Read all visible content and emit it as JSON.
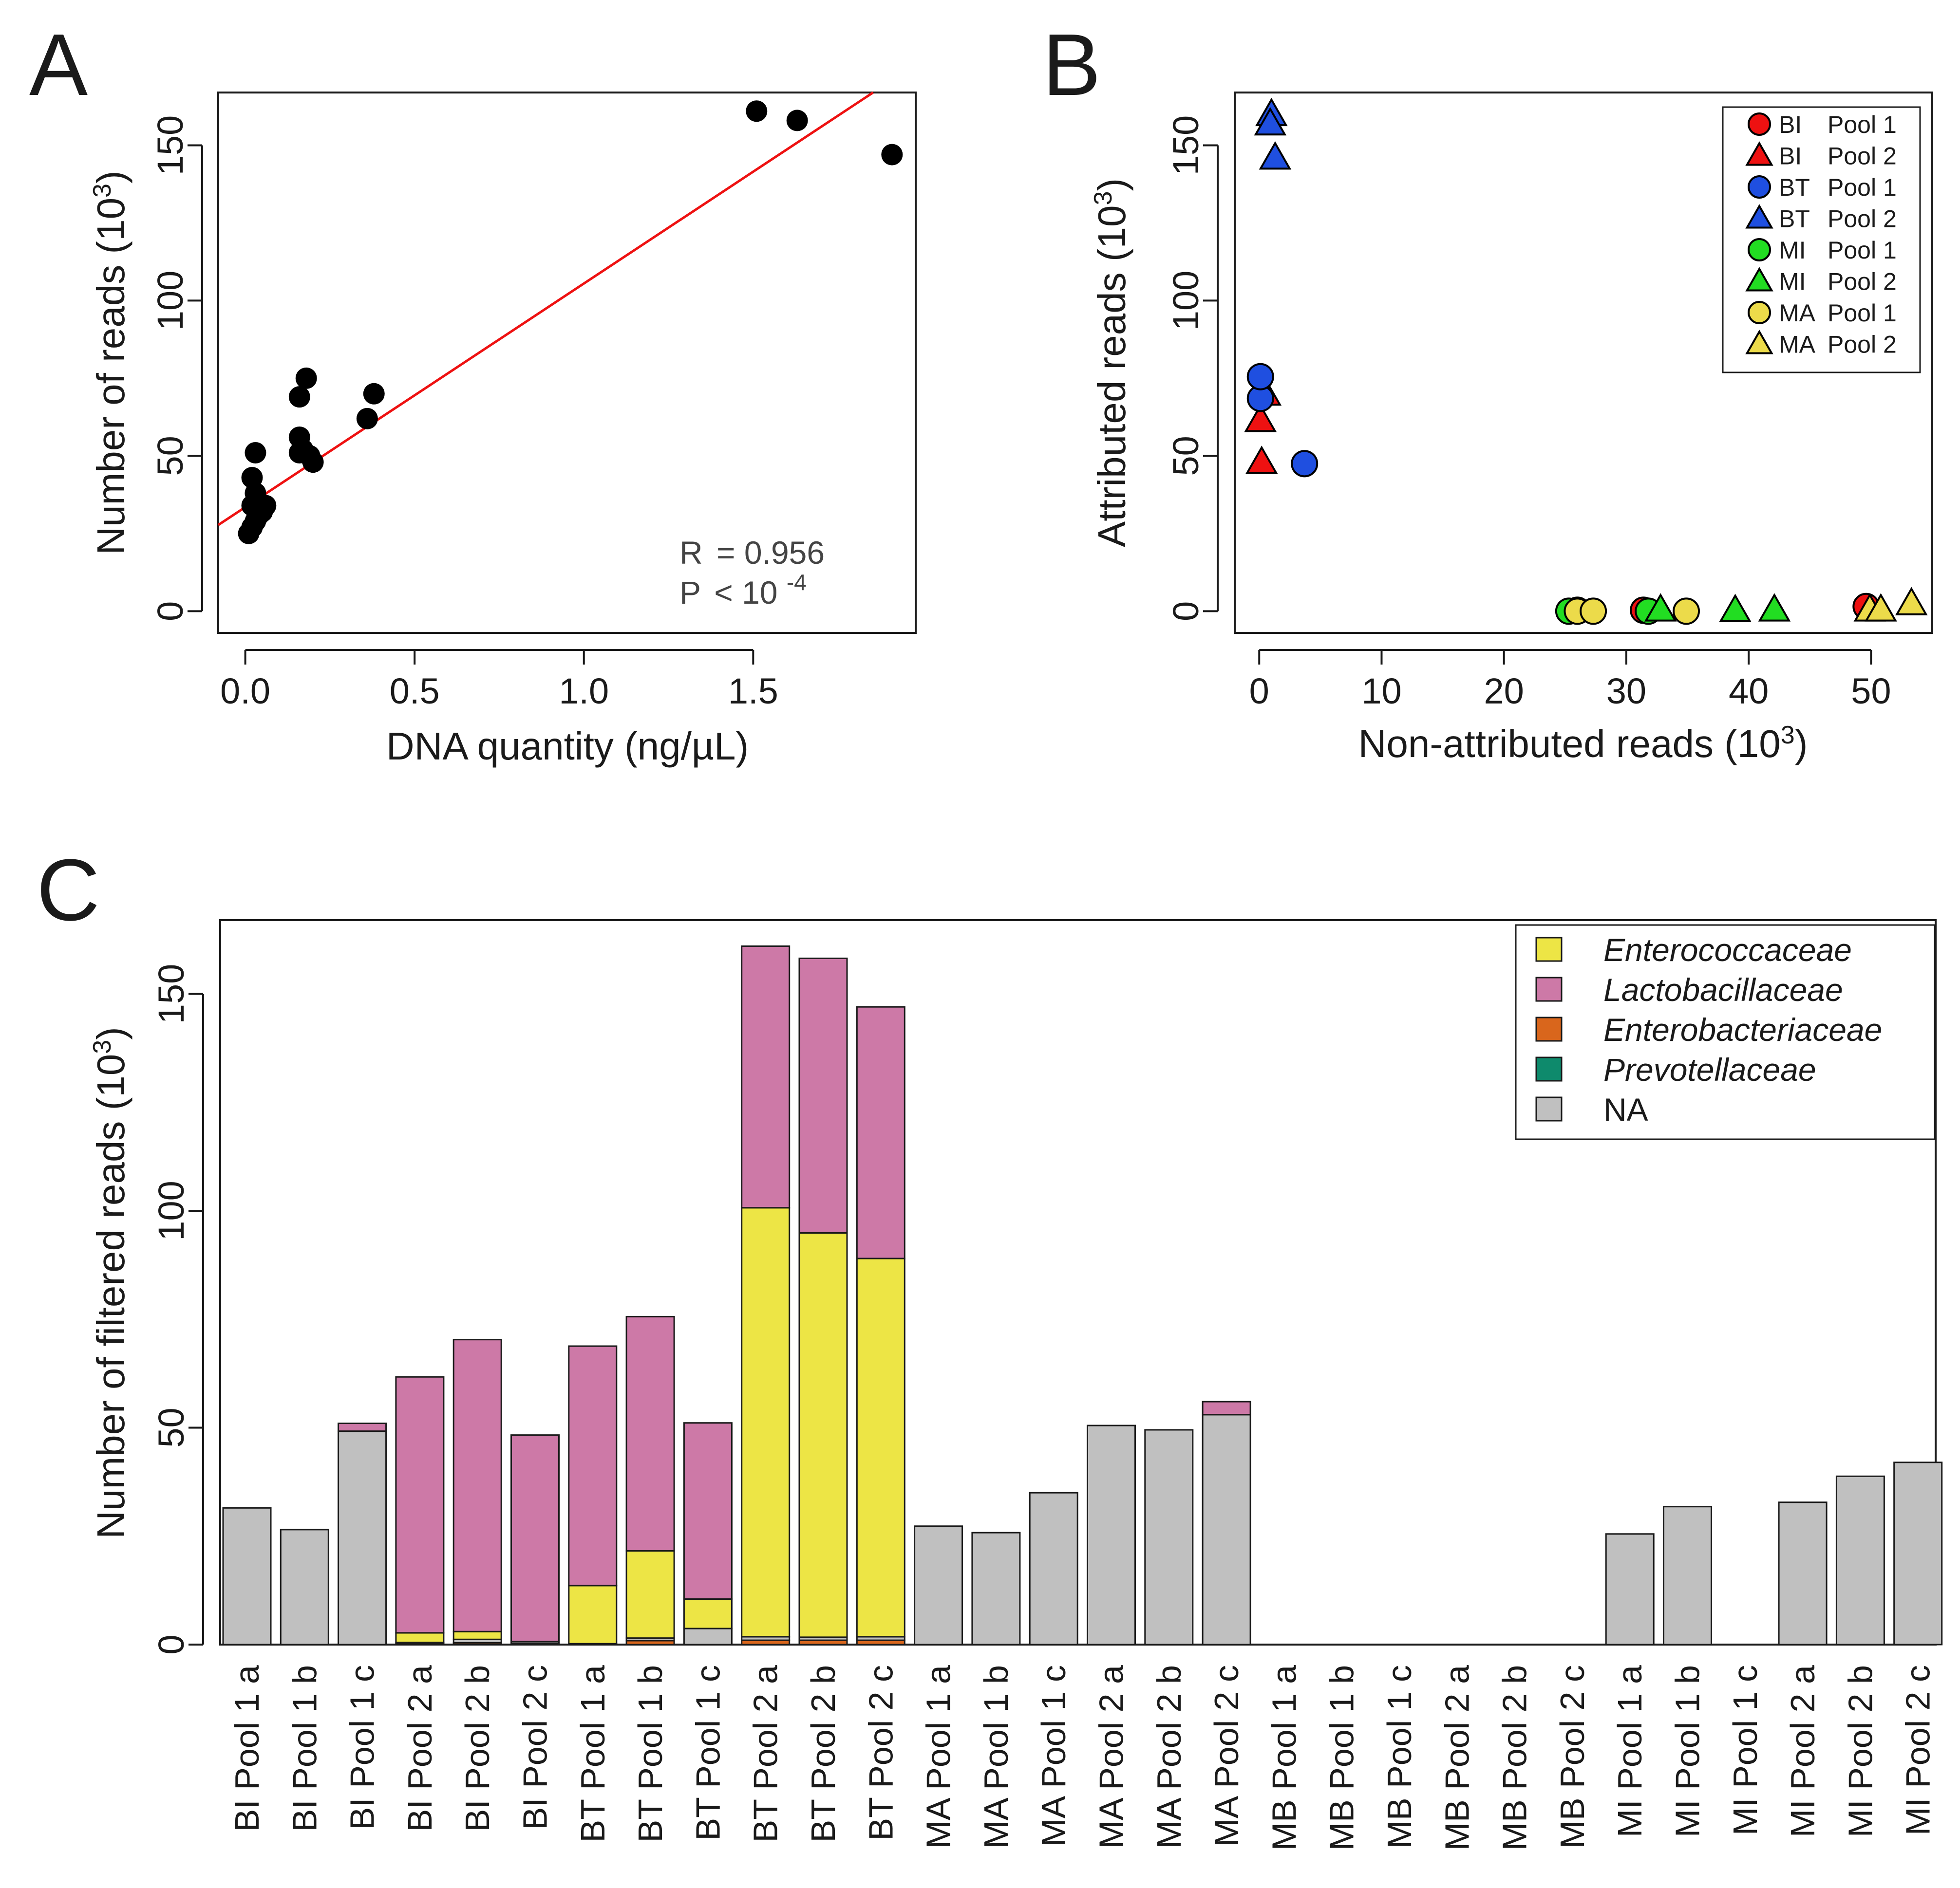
{
  "panels": {
    "a": "A",
    "b": "B",
    "c": "C"
  },
  "colors": {
    "red": "#ee1111",
    "blue": "#1f4fe0",
    "green": "#22dd22",
    "gold": "#ecdb4a",
    "enterococcaceae": "#ede545",
    "lactobacillaceae": "#cd79a7",
    "enterobacteriaceae": "#d9661c",
    "prevotellaceae": "#0e8a6c",
    "na": "#c0c0c0"
  },
  "chart_data": [
    {
      "id": "A",
      "type": "scatter",
      "title": "",
      "xlabel": "DNA quantity (ng/µL)",
      "ylabel": "Number of reads (10³)",
      "ylabel_base": "Number of reads (10",
      "ylabel_sup": "3",
      "ylabel_close": ")",
      "xlim": [
        -0.08,
        1.98
      ],
      "ylim": [
        -7,
        167
      ],
      "xticks": [
        "0.0",
        "0.5",
        "1.0",
        "1.5"
      ],
      "yticks": [
        "0",
        "50",
        "100",
        "150"
      ],
      "x": [
        0.01,
        0.02,
        0.03,
        0.04,
        0.02,
        0.03,
        0.05,
        0.06,
        0.03,
        0.02,
        0.16,
        0.16,
        0.17,
        0.19,
        0.2,
        0.16,
        0.18,
        0.36,
        0.38,
        1.51,
        1.63,
        1.91
      ],
      "y": [
        25,
        27,
        29,
        31,
        34,
        38,
        32,
        34,
        51,
        43,
        56,
        51,
        52,
        50,
        48,
        69,
        75,
        62,
        70,
        161,
        158,
        147
      ],
      "regression": {
        "intercept": 33.5,
        "slope": 72.0
      },
      "stats": {
        "r_label": "R",
        "r_value": "= 0.956",
        "p_label": "P",
        "p_value": "< 10",
        "p_exp": "-4"
      }
    },
    {
      "id": "B",
      "type": "scatter",
      "title": "",
      "xlabel": "Non-attributed reads (10³)",
      "xlabel_base": "Non-attributed reads (10",
      "xlabel_sup": "3",
      "xlabel_close": ")",
      "ylabel": "Attributed reads (10³)",
      "ylabel_base": "Attributed reads (10",
      "ylabel_sup": "3",
      "ylabel_close": ")",
      "xlim": [
        -2,
        55
      ],
      "ylim": [
        -7,
        167
      ],
      "xticks": [
        "0",
        "10",
        "20",
        "30",
        "40",
        "50"
      ],
      "yticks": [
        "0",
        "50",
        "100",
        "150"
      ],
      "legend_position": "top-right",
      "series": [
        {
          "name": "BI Pool 1",
          "label_a": "BI",
          "label_b": "Pool 1",
          "color": "red",
          "shape": "circle",
          "points": [
            [
              26.0,
              0.3
            ],
            [
              31.4,
              0.3
            ],
            [
              49.6,
              1.5
            ]
          ]
        },
        {
          "name": "BI Pool 2",
          "label_a": "BI",
          "label_b": "Pool 2",
          "color": "red",
          "shape": "triangle",
          "points": [
            [
              0.1,
              61.5
            ],
            [
              0.2,
              48.0
            ],
            [
              0.5,
              70.0
            ]
          ]
        },
        {
          "name": "BT Pool 1",
          "label_a": "BT",
          "label_b": "Pool 1",
          "color": "blue",
          "shape": "circle",
          "points": [
            [
              0.1,
              68.5
            ],
            [
              0.1,
              75.5
            ],
            [
              3.7,
              47.5
            ]
          ]
        },
        {
          "name": "BT Pool 2",
          "label_a": "BT",
          "label_b": "Pool 2",
          "color": "blue",
          "shape": "triangle",
          "points": [
            [
              1.0,
              160.0
            ],
            [
              0.9,
              157.0
            ],
            [
              1.3,
              146.0
            ]
          ]
        },
        {
          "name": "MI Pool 1",
          "label_a": "MI",
          "label_b": "Pool 1",
          "color": "green",
          "shape": "circle",
          "points": [
            [
              25.3,
              0.0
            ],
            [
              31.8,
              0.0
            ]
          ]
        },
        {
          "name": "MI Pool 2",
          "label_a": "MI",
          "label_b": "Pool 2",
          "color": "green",
          "shape": "triangle",
          "points": [
            [
              32.8,
              0.5
            ],
            [
              38.9,
              0.3
            ],
            [
              42.1,
              0.5
            ]
          ]
        },
        {
          "name": "MA Pool 1",
          "label_a": "MA",
          "label_b": "Pool 1",
          "color": "gold",
          "shape": "circle",
          "points": [
            [
              26.0,
              0.0
            ],
            [
              27.3,
              0.0
            ],
            [
              34.9,
              0.0
            ]
          ]
        },
        {
          "name": "MA Pool 2",
          "label_a": "MA",
          "label_b": "Pool 2",
          "color": "gold",
          "shape": "triangle",
          "points": [
            [
              49.9,
              0.5
            ],
            [
              50.8,
              0.5
            ],
            [
              53.3,
              2.5
            ]
          ]
        }
      ]
    },
    {
      "id": "C",
      "type": "bar",
      "stacked": true,
      "title": "",
      "xlabel": "",
      "ylabel": "Number of filtered reads (10³)",
      "ylabel_base": "Number of filtered reads (10",
      "ylabel_sup": "3",
      "ylabel_close": ")",
      "ylim": [
        0,
        167
      ],
      "yticks": [
        "0",
        "50",
        "100",
        "150"
      ],
      "legend_position": "top-right",
      "stack_order": [
        "Prevotellaceae",
        "Enterobacteriaceae",
        "NA",
        "Enterococcaceae",
        "Lactobacillaceae"
      ],
      "legend": [
        {
          "name": "Enterococcaceae",
          "color": "enterococcaceae",
          "italic": true
        },
        {
          "name": "Lactobacillaceae",
          "color": "lactobacillaceae",
          "italic": true
        },
        {
          "name": "Enterobacteriaceae",
          "color": "enterobacteriaceae",
          "italic": true
        },
        {
          "name": "Prevotellaceae",
          "color": "prevotellaceae",
          "italic": true
        },
        {
          "name": "NA",
          "color": "na",
          "italic": false
        }
      ],
      "categories": [
        "BI Pool 1 a",
        "BI Pool 1 b",
        "BI Pool 1 c",
        "BI Pool 2 a",
        "BI Pool 2 b",
        "BI Pool 2 c",
        "BT Pool 1 a",
        "BT Pool 1 b",
        "BT Pool 1 c",
        "BT Pool 2 a",
        "BT Pool 2 b",
        "BT Pool 2 c",
        "MA Pool 1 a",
        "MA Pool 1 b",
        "MA Pool 1 c",
        "MA Pool 2 a",
        "MA Pool 2 b",
        "MA Pool 2 c",
        "MB Pool 1 a",
        "MB Pool 1 b",
        "MB Pool 1 c",
        "MB Pool 2 a",
        "MB Pool 2 b",
        "MB Pool 2 c",
        "MI Pool 1 a",
        "MI Pool 1 b",
        "MI Pool 1 c",
        "MI Pool 2 a",
        "MI Pool 2 b",
        "MI Pool 2 c"
      ],
      "series": [
        {
          "name": "Prevotellaceae",
          "color": "prevotellaceae",
          "values": [
            0,
            0,
            0,
            0,
            0,
            0,
            0,
            0,
            0,
            0,
            0,
            0,
            0,
            0,
            0,
            0,
            0,
            0,
            0,
            0,
            0,
            0,
            0,
            0,
            0,
            0,
            0,
            0,
            0,
            0
          ]
        },
        {
          "name": "Enterobacteriaceae",
          "color": "enterobacteriaceae",
          "values": [
            0,
            0,
            0,
            0.3,
            0.4,
            0.3,
            0,
            0.9,
            0,
            1.0,
            1.0,
            1.0,
            0,
            0,
            0,
            0,
            0,
            0,
            0,
            0,
            0,
            0,
            0,
            0,
            0,
            0,
            0,
            0,
            0,
            0
          ]
        },
        {
          "name": "NA",
          "color": "na",
          "values": [
            31.5,
            26.5,
            49.2,
            0.2,
            0.8,
            0.4,
            0.2,
            0.6,
            3.7,
            0.8,
            0.7,
            0.8,
            27.3,
            25.8,
            35.0,
            50.5,
            49.5,
            53.0,
            0,
            0,
            0,
            0,
            0,
            0,
            25.5,
            31.8,
            0,
            32.8,
            38.8,
            42.0
          ]
        },
        {
          "name": "Enterococcaceae",
          "color": "enterococcaceae",
          "values": [
            0,
            0,
            0,
            2.2,
            1.8,
            0,
            13.4,
            20.1,
            6.8,
            98.9,
            93.2,
            87.2,
            0,
            0,
            0,
            0,
            0,
            0,
            0,
            0,
            0,
            0,
            0,
            0,
            0,
            0,
            0,
            0,
            0,
            0
          ]
        },
        {
          "name": "Lactobacillaceae",
          "color": "lactobacillaceae",
          "values": [
            0,
            0,
            1.8,
            59.0,
            67.3,
            47.6,
            55.2,
            54.0,
            40.6,
            60.3,
            63.3,
            58.0,
            0,
            0,
            0,
            0,
            0,
            3.0,
            0,
            0,
            0,
            0,
            0,
            0,
            0,
            0,
            0,
            0,
            0,
            0
          ]
        }
      ]
    }
  ]
}
